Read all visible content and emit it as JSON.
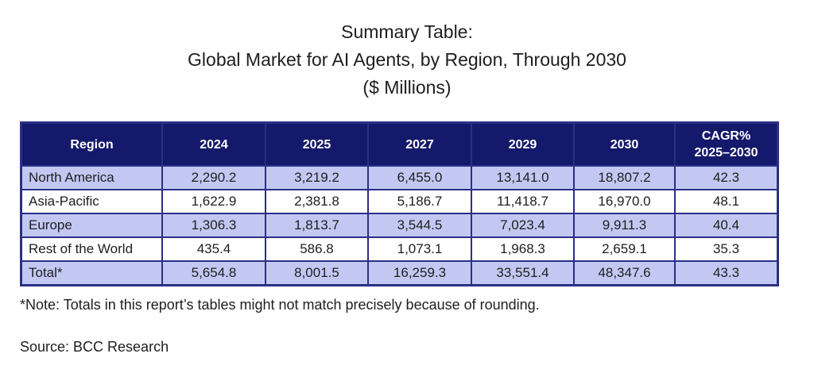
{
  "title": {
    "line1": "Summary Table:",
    "line2": "Global Market for AI Agents, by Region, Through 2030",
    "line3": "($ Millions)"
  },
  "table": {
    "headers": [
      "Region",
      "2024",
      "2025",
      "2027",
      "2029",
      "2030",
      "CAGR%",
      "2025–2030"
    ],
    "rows": [
      {
        "region": "North America",
        "values": [
          "2,290.2",
          "3,219.2",
          "6,455.0",
          "13,141.0",
          "18,807.2",
          "42.3"
        ]
      },
      {
        "region": "Asia-Pacific",
        "values": [
          "1,622.9",
          "2,381.8",
          "5,186.7",
          "11,418.7",
          "16,970.0",
          "48.1"
        ]
      },
      {
        "region": "Europe",
        "values": [
          "1,306.3",
          "1,813.7",
          "3,544.5",
          "7,023.4",
          "9,911.3",
          "40.4"
        ]
      },
      {
        "region": "Rest of the World",
        "values": [
          "435.4",
          "586.8",
          "1,073.1",
          "1,968.3",
          "2,659.1",
          "35.3"
        ]
      },
      {
        "region": "Total*",
        "values": [
          "5,654.8",
          "8,001.5",
          "16,259.3",
          "33,551.4",
          "48,347.6",
          "43.3"
        ]
      }
    ]
  },
  "note": "*Note: Totals in this report’s tables might not match precisely because of rounding.",
  "source": "Source: BCC Research",
  "colors": {
    "header_bg": "#15196b",
    "shade_row": "#c3c8f2",
    "border": "#2b2f86"
  }
}
